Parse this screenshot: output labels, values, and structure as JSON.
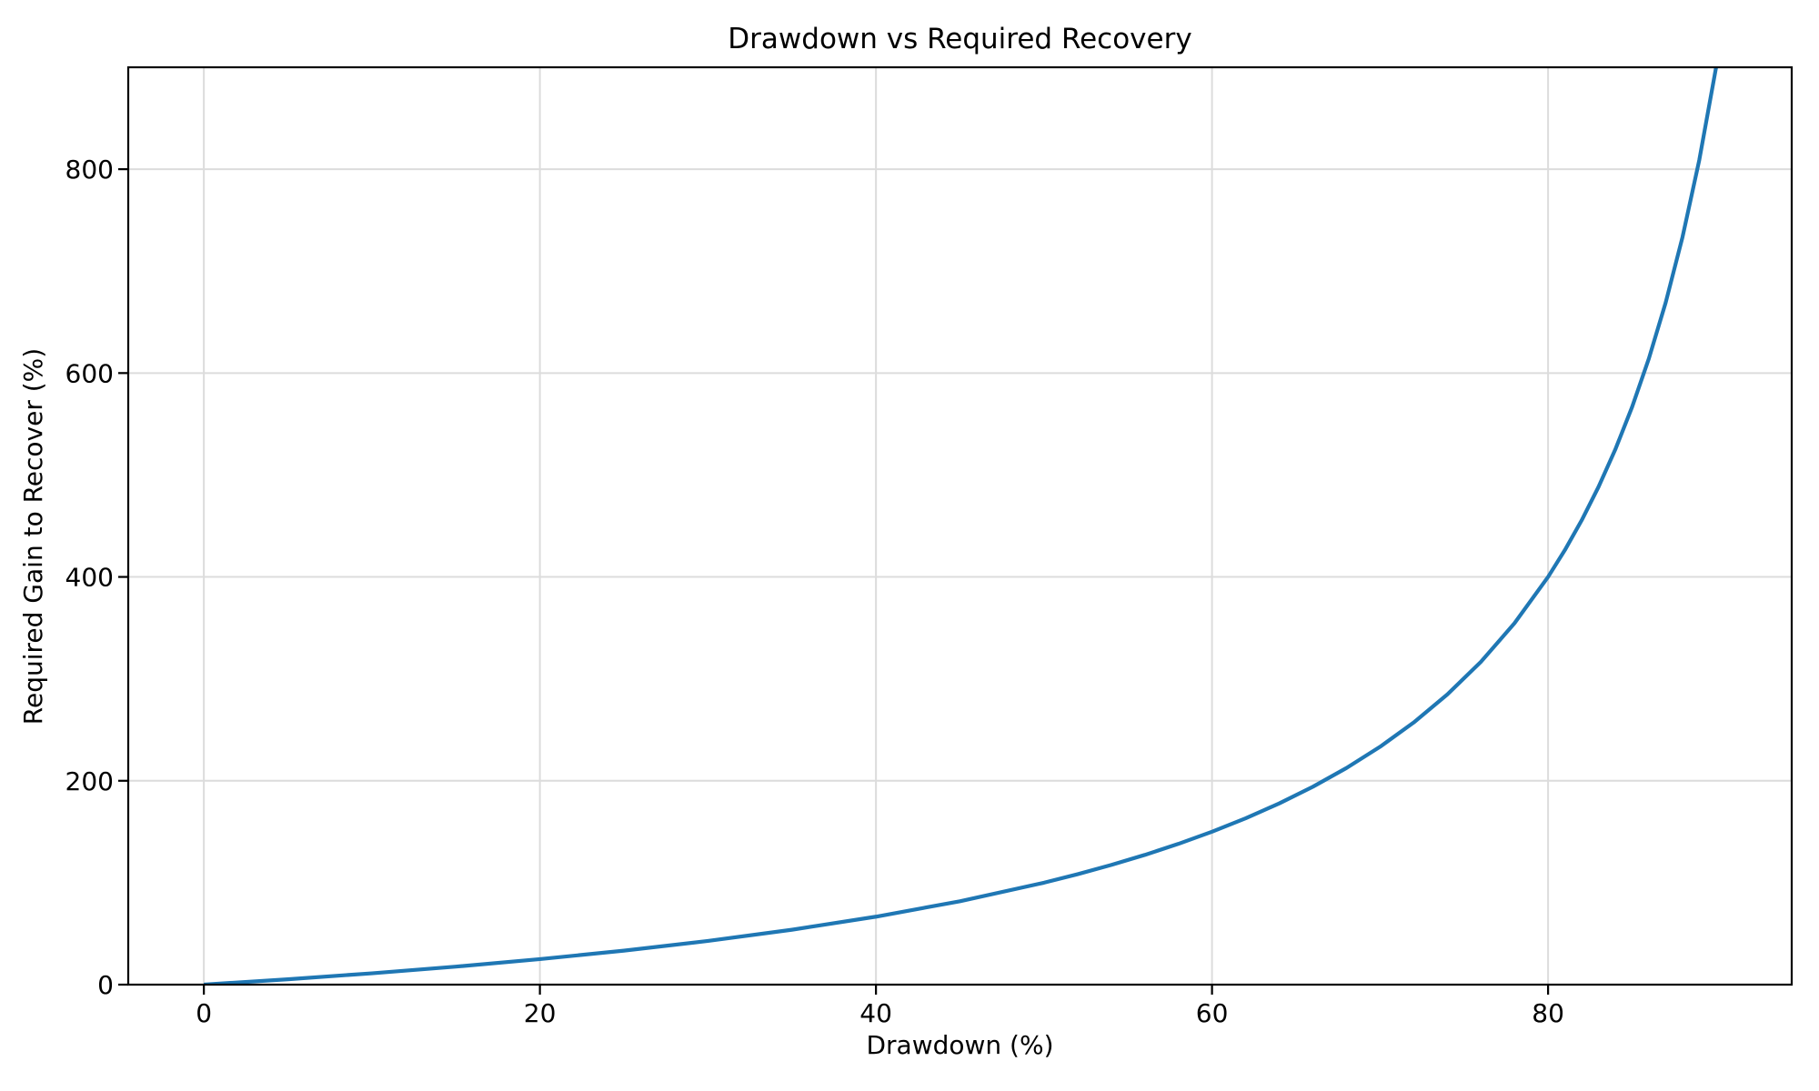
{
  "title": "Drawdown vs Required Recovery",
  "chart_data": {
    "type": "line",
    "title": "Drawdown vs Required Recovery",
    "xlabel": "Drawdown (%)",
    "ylabel": "Required Gain to Recover (%)",
    "x": [
      0,
      5,
      10,
      15,
      20,
      25,
      30,
      35,
      40,
      45,
      50,
      52,
      54,
      56,
      58,
      60,
      62,
      64,
      66,
      68,
      70,
      72,
      74,
      76,
      78,
      80,
      81,
      82,
      83,
      84,
      85,
      86,
      87,
      88,
      89,
      90
    ],
    "y": [
      0,
      5.26,
      11.11,
      17.65,
      25.0,
      33.33,
      42.86,
      53.85,
      66.67,
      81.82,
      100.0,
      108.33,
      117.39,
      127.27,
      138.1,
      150.0,
      163.16,
      177.78,
      194.12,
      212.5,
      233.33,
      257.14,
      284.62,
      316.67,
      354.55,
      400.0,
      426.32,
      455.56,
      488.24,
      525.0,
      566.67,
      614.29,
      669.23,
      733.33,
      809.09,
      900.0
    ],
    "xlim": [
      -4.5,
      94.5
    ],
    "ylim": [
      0,
      900
    ],
    "x_tick_values": [
      0,
      20,
      40,
      60,
      80
    ],
    "x_tick_labels": [
      "0",
      "20",
      "40",
      "60",
      "80"
    ],
    "y_tick_values": [
      0,
      200,
      400,
      600,
      800
    ],
    "y_tick_labels": [
      "0",
      "200",
      "400",
      "600",
      "800"
    ],
    "grid": true,
    "legend": false,
    "line_color": "#1f77b4",
    "line_width": 4.2,
    "grid_color": "#dcdcdc",
    "axis_color": "#000000",
    "tick_label_color": "#000000",
    "background_color": "#ffffff"
  }
}
